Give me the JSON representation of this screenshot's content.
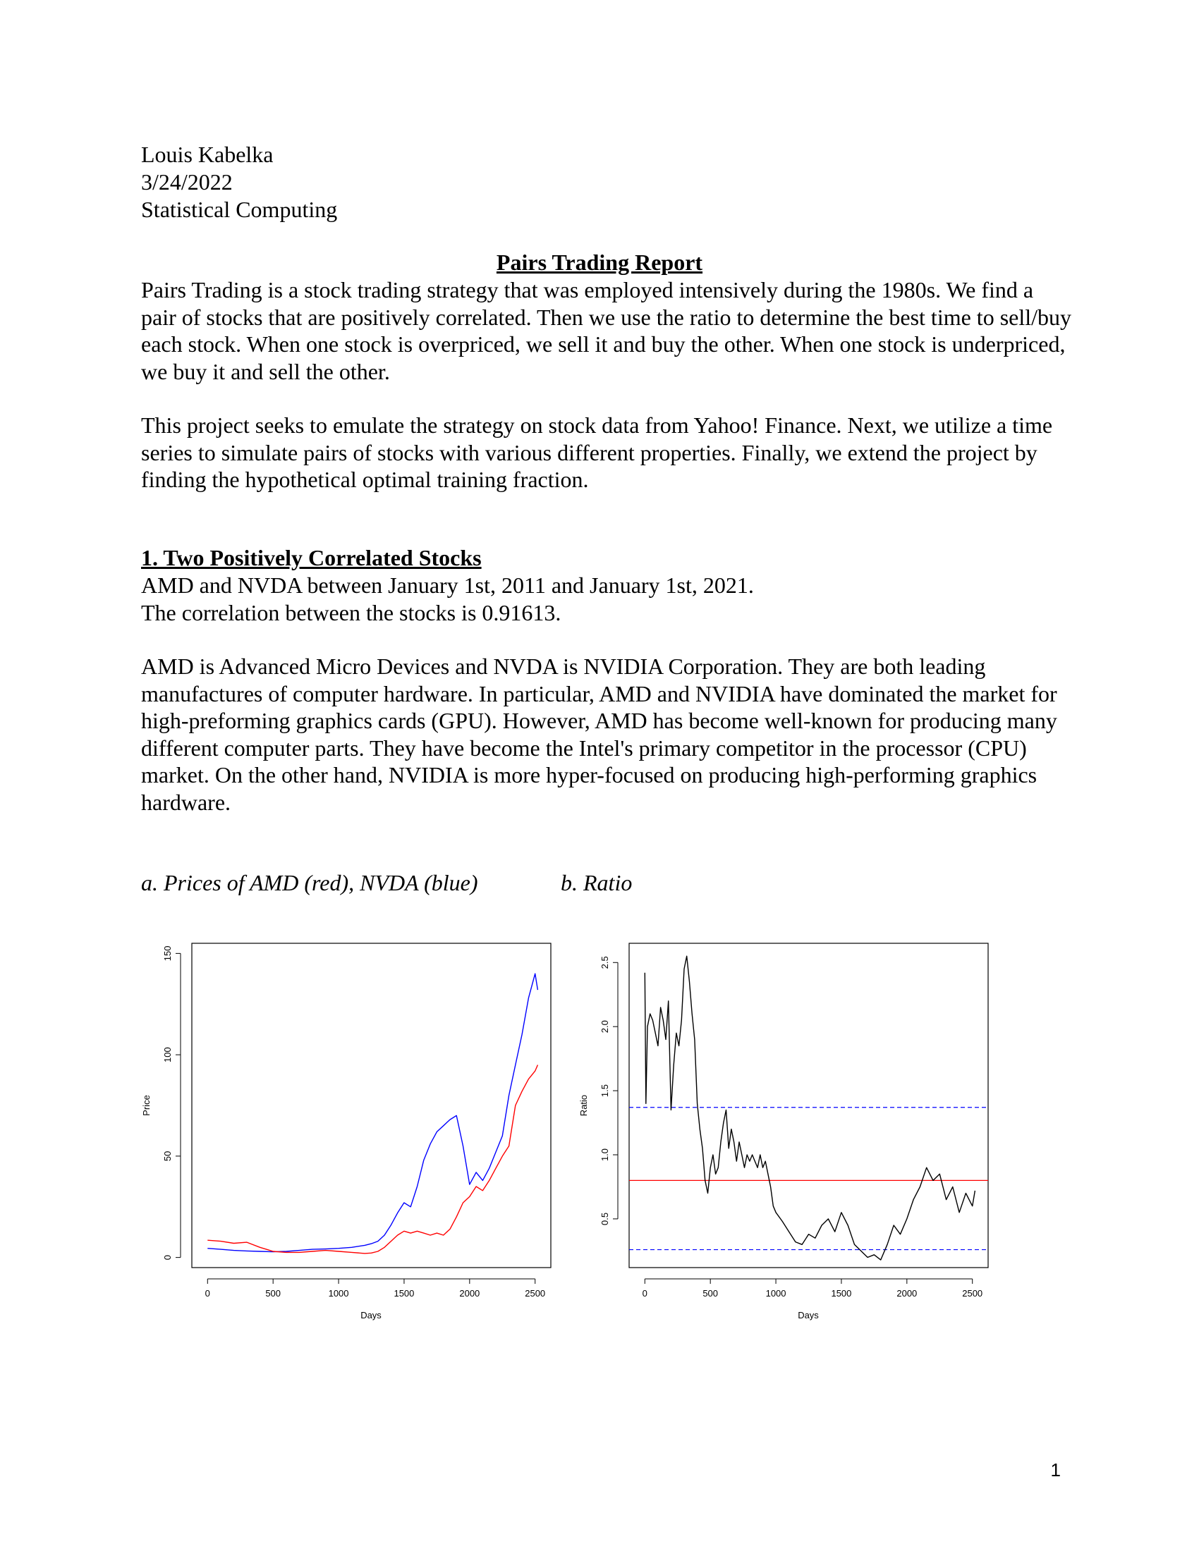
{
  "header": {
    "author": "Louis Kabelka",
    "date": "3/24/2022",
    "course": "Statistical Computing"
  },
  "title": "Pairs Trading Report",
  "intro": {
    "paragraph1": "Pairs Trading is a stock trading strategy that was employed intensively during the 1980s. We find a pair of stocks that are positively correlated. Then we use the ratio to determine the best time to sell/buy each stock. When one stock is overpriced, we sell it and buy the other. When one stock is underpriced, we buy it and sell the other.",
    "paragraph2": "This project seeks to emulate the strategy on stock data from Yahoo! Finance. Next, we utilize a time series to simulate pairs of stocks with various different properties. Finally, we extend the project by finding the hypothetical optimal training fraction."
  },
  "section1": {
    "heading": "1. Two Positively Correlated Stocks",
    "line1": "AMD and NVDA between January 1st, 2011 and January 1st, 2021.",
    "line2": "The correlation between the stocks is 0.91613.",
    "paragraph": "AMD is Advanced Micro Devices and NVDA is NVIDIA Corporation. They are both leading manufactures of computer hardware. In particular, AMD and NVIDIA have dominated the market for high-preforming graphics cards (GPU). However, AMD has become well-known for producing many different computer parts. They have become the Intel's primary competitor in the processor (CPU) market. On the other hand, NVIDIA is more hyper-focused on producing high-performing graphics hardware.",
    "caption_a": "a. Prices of AMD (red), NVDA (blue)",
    "caption_b": "b. Ratio"
  },
  "page_number": "1",
  "chart_data": [
    {
      "type": "line",
      "xlabel": "Days",
      "ylabel": "Price",
      "xlim": [
        -120,
        2620
      ],
      "ylim": [
        -5,
        155
      ],
      "xticks": [
        "0",
        "500",
        "1000",
        "1500",
        "2000",
        "2500"
      ],
      "yticks": [
        "0",
        "50",
        "100",
        "150"
      ],
      "x": [
        0,
        100,
        200,
        300,
        400,
        500,
        600,
        700,
        800,
        900,
        1000,
        1100,
        1200,
        1250,
        1300,
        1350,
        1400,
        1450,
        1500,
        1550,
        1600,
        1650,
        1700,
        1750,
        1800,
        1850,
        1900,
        1950,
        2000,
        2050,
        2100,
        2150,
        2200,
        2250,
        2300,
        2350,
        2400,
        2450,
        2500,
        2520
      ],
      "series": [
        {
          "color": "#0000ff",
          "values": [
            4.5,
            4.0,
            3.5,
            3.2,
            3.0,
            2.8,
            3.0,
            3.5,
            4.0,
            4.2,
            4.5,
            5.0,
            6.0,
            6.8,
            8.0,
            11,
            16,
            22,
            27,
            25,
            35,
            48,
            56,
            62,
            65,
            68,
            70,
            55,
            36,
            42,
            38,
            44,
            52,
            60,
            80,
            95,
            110,
            128,
            140,
            132
          ]
        },
        {
          "color": "#ff0000",
          "values": [
            8.5,
            8.0,
            7.0,
            7.5,
            5.0,
            3.0,
            2.5,
            2.5,
            3.0,
            3.5,
            3.0,
            2.5,
            2.0,
            2.2,
            3.0,
            5.0,
            8.0,
            11,
            13,
            12,
            13,
            12,
            11,
            12,
            11,
            14,
            20,
            27,
            30,
            35,
            33,
            38,
            44,
            50,
            55,
            75,
            82,
            88,
            92,
            95
          ]
        }
      ]
    },
    {
      "type": "line",
      "xlabel": "Days",
      "ylabel": "Ratio",
      "xlim": [
        -120,
        2620
      ],
      "ylim": [
        0.12,
        2.65
      ],
      "xticks": [
        "0",
        "500",
        "1000",
        "1500",
        "2000",
        "2500"
      ],
      "yticks": [
        "0.5",
        "1.0",
        "1.5",
        "2.0",
        "2.5"
      ],
      "x": [
        0,
        8,
        20,
        40,
        60,
        80,
        100,
        120,
        140,
        160,
        180,
        200,
        220,
        240,
        260,
        280,
        300,
        320,
        340,
        360,
        380,
        400,
        420,
        440,
        460,
        480,
        500,
        520,
        540,
        560,
        580,
        600,
        620,
        640,
        660,
        680,
        700,
        720,
        740,
        760,
        780,
        800,
        820,
        840,
        860,
        880,
        900,
        920,
        940,
        960,
        980,
        1000,
        1050,
        1100,
        1150,
        1200,
        1250,
        1300,
        1350,
        1400,
        1450,
        1500,
        1550,
        1600,
        1650,
        1700,
        1750,
        1800,
        1850,
        1900,
        1950,
        2000,
        2050,
        2100,
        2150,
        2200,
        2250,
        2300,
        2350,
        2400,
        2450,
        2500,
        2520
      ],
      "series": [
        {
          "color": "#000000",
          "values": [
            2.42,
            1.4,
            2.0,
            2.1,
            2.05,
            1.95,
            1.85,
            2.15,
            2.05,
            1.9,
            2.2,
            1.35,
            1.7,
            1.95,
            1.85,
            2.05,
            2.45,
            2.55,
            2.35,
            2.1,
            1.9,
            1.4,
            1.2,
            1.05,
            0.8,
            0.7,
            0.9,
            1.0,
            0.85,
            0.9,
            1.1,
            1.25,
            1.35,
            1.05,
            1.2,
            1.1,
            0.95,
            1.1,
            1.0,
            0.9,
            1.0,
            0.95,
            1.0,
            0.95,
            0.9,
            1.0,
            0.9,
            0.95,
            0.85,
            0.75,
            0.6,
            0.55,
            0.48,
            0.4,
            0.32,
            0.3,
            0.38,
            0.35,
            0.45,
            0.5,
            0.4,
            0.55,
            0.45,
            0.3,
            0.25,
            0.2,
            0.22,
            0.18,
            0.3,
            0.45,
            0.38,
            0.5,
            0.65,
            0.75,
            0.9,
            0.8,
            0.85,
            0.65,
            0.75,
            0.55,
            0.7,
            0.6,
            0.72
          ]
        }
      ],
      "hlines": [
        {
          "y": 0.8,
          "color": "#ff0000",
          "style": "solid"
        },
        {
          "y": 1.37,
          "color": "#0000ff",
          "style": "dashed"
        },
        {
          "y": 0.26,
          "color": "#0000ff",
          "style": "dashed"
        }
      ]
    }
  ]
}
